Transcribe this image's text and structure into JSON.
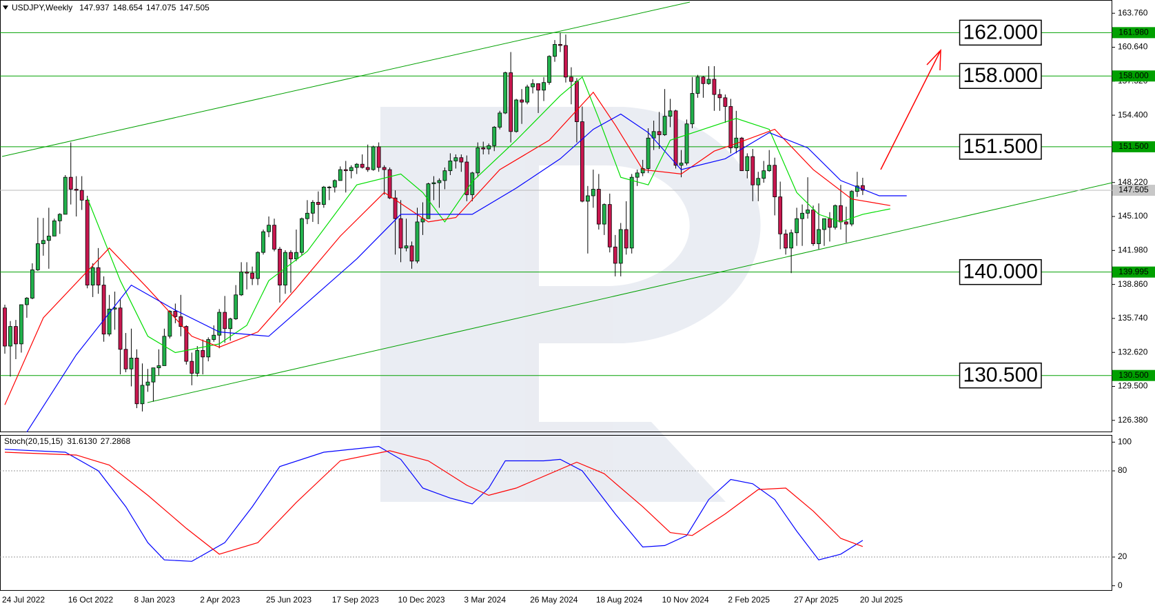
{
  "chart_data": [
    {
      "type": "candlestick",
      "title": "USDJPY,Weekly",
      "categories": [
        "24 Jul 2022",
        null,
        null,
        null,
        null,
        null,
        null,
        null,
        null,
        null,
        null,
        null,
        "16 Oct 2022",
        null,
        null,
        null,
        null,
        null,
        null,
        null,
        null,
        null,
        null,
        null,
        "8 Jan 2023",
        null,
        null,
        null,
        null,
        null,
        null,
        null,
        null,
        null,
        null,
        null,
        "2 Apr 2023",
        null,
        null,
        null,
        null,
        null,
        null,
        null,
        null,
        null,
        null,
        null,
        "25 Jun 2023",
        null,
        null,
        null,
        null,
        null,
        null,
        null,
        null,
        null,
        null,
        null,
        "17 Sep 2023",
        null,
        null,
        null,
        null,
        null,
        null,
        null,
        null,
        null,
        null,
        null,
        "10 Dec 2023",
        null,
        null,
        null,
        null,
        null,
        null,
        null,
        null,
        null,
        null,
        null,
        "3 Mar 2024",
        null,
        null,
        null,
        null,
        null,
        null,
        null,
        null,
        null,
        null,
        null,
        "26 May 2024",
        null,
        null,
        null,
        null,
        null,
        null,
        null,
        null,
        null,
        null,
        null,
        "18 Aug 2024",
        null,
        null,
        null,
        null,
        null,
        null,
        null,
        null,
        null,
        null,
        null,
        "10 Nov 2024",
        null,
        null,
        null,
        null,
        null,
        null,
        null,
        null,
        null,
        null,
        null,
        "2 Feb 2025",
        null,
        null,
        null,
        null,
        null,
        null,
        null,
        null,
        null,
        null,
        null,
        "27 Apr 2025",
        null,
        null,
        null,
        null,
        null,
        null,
        null,
        null,
        null,
        null,
        null,
        "20 Jul 2025"
      ],
      "open": [
        136.7,
        133.2,
        135.0,
        133.4,
        137.0,
        137.6,
        140.2,
        142.6,
        142.9,
        143.3,
        144.7,
        145.3,
        148.7,
        147.6,
        147.5,
        146.6,
        138.8,
        140.4,
        138.8,
        134.3,
        136.6,
        136.7,
        132.9,
        131.1,
        132.1,
        127.9,
        129.6,
        129.9,
        131.2,
        131.4,
        134.1,
        136.4,
        135.9,
        135.0,
        131.8,
        130.7,
        132.8,
        132.2,
        133.8,
        134.2,
        136.3,
        134.8,
        135.7,
        137.9,
        140.0,
        139.9,
        139.4,
        141.8,
        143.7,
        144.3,
        142.1,
        138.8,
        141.8,
        141.2,
        141.8,
        144.9,
        145.4,
        146.4,
        146.2,
        147.8,
        147.8,
        148.4,
        149.4,
        149.3,
        149.6,
        149.9,
        149.6,
        149.4,
        151.5,
        149.6,
        149.4,
        146.8,
        144.9,
        142.2,
        142.4,
        141.0,
        144.6,
        144.9,
        148.1,
        148.2,
        148.4,
        149.3,
        150.2,
        150.5,
        150.1,
        147.1,
        149.1,
        151.4,
        151.3,
        151.6,
        153.3,
        154.6,
        158.3,
        152.9,
        155.8,
        155.6,
        157.0,
        157.3,
        156.7,
        157.4,
        159.8,
        160.9,
        160.8,
        157.9,
        157.5,
        153.8,
        146.5,
        147.0,
        147.6,
        144.4,
        146.2,
        142.3,
        140.8,
        143.9,
        142.2,
        148.7,
        149.1,
        149.5,
        152.3,
        152.9,
        152.6,
        154.3,
        154.8,
        149.8,
        150.0,
        153.6,
        156.4,
        157.9,
        157.3,
        157.7,
        156.3,
        156.0,
        155.2,
        151.4,
        152.3,
        149.3,
        150.6,
        148.0,
        148.6,
        149.3,
        149.8,
        146.9,
        143.5,
        142.2,
        143.6,
        144.9,
        145.4,
        145.7,
        142.6,
        143.9,
        144.9,
        144.1,
        146.1,
        144.6,
        144.4,
        147.4,
        147.937
      ],
      "high": [
        137.0,
        135.5,
        135.6,
        137.0,
        137.7,
        140.8,
        144.99,
        144.96,
        145.9,
        144.9,
        145.4,
        148.9,
        151.9,
        148.8,
        148.8,
        147.0,
        140.8,
        142.2,
        139.6,
        137.9,
        138.2,
        137.5,
        134.4,
        134.8,
        132.9,
        131.6,
        131.1,
        131.2,
        132.9,
        134.8,
        136.5,
        137.1,
        137.9,
        135.1,
        132.6,
        133.2,
        133.8,
        134.0,
        135.1,
        136.6,
        137.8,
        135.8,
        138.8,
        140.9,
        140.9,
        140.5,
        141.9,
        143.9,
        145.1,
        144.9,
        142.3,
        142.0,
        142.0,
        143.9,
        145.0,
        146.6,
        146.6,
        147.4,
        147.9,
        147.9,
        148.5,
        149.7,
        150.2,
        149.8,
        150.0,
        150.8,
        151.7,
        151.6,
        151.9,
        149.8,
        149.6,
        147.5,
        146.6,
        144.9,
        142.8,
        145.9,
        146.4,
        148.2,
        148.8,
        148.6,
        149.6,
        150.9,
        150.8,
        150.8,
        150.7,
        149.2,
        151.9,
        151.97,
        151.8,
        153.4,
        154.8,
        158.4,
        160.2,
        155.9,
        156.8,
        157.2,
        157.7,
        157.3,
        157.9,
        159.9,
        161.3,
        161.95,
        161.8,
        158.8,
        157.8,
        155.2,
        147.9,
        149.4,
        149.0,
        146.3,
        147.2,
        143.4,
        144.5,
        146.5,
        149.0,
        149.4,
        150.3,
        153.2,
        153.9,
        154.7,
        156.8,
        155.9,
        154.9,
        151.2,
        154.0,
        157.9,
        158.1,
        158.0,
        158.9,
        158.9,
        156.8,
        156.3,
        155.9,
        154.8,
        152.4,
        150.9,
        151.3,
        149.2,
        150.2,
        151.2,
        150.5,
        148.3,
        143.9,
        143.9,
        145.9,
        146.2,
        148.7,
        146.1,
        146.3,
        144.9,
        145.5,
        146.2,
        148.0,
        146.0,
        147.5,
        149.2,
        148.654
      ],
      "low": [
        132.5,
        130.4,
        132.0,
        132.6,
        135.8,
        137.5,
        140.1,
        141.5,
        140.3,
        143.3,
        143.5,
        145.3,
        146.2,
        145.1,
        145.7,
        138.5,
        137.7,
        138.0,
        133.6,
        134.1,
        134.7,
        130.6,
        130.8,
        129.5,
        127.5,
        127.2,
        129.0,
        128.1,
        130.5,
        131.4,
        133.9,
        135.3,
        134.1,
        131.5,
        129.6,
        130.4,
        130.6,
        131.8,
        133.6,
        133.0,
        133.5,
        133.7,
        135.6,
        137.8,
        138.4,
        138.8,
        138.8,
        141.6,
        143.2,
        141.9,
        137.2,
        138.0,
        138.1,
        141.0,
        141.5,
        144.4,
        144.6,
        144.4,
        145.9,
        146.6,
        147.3,
        148.4,
        147.3,
        148.6,
        149.0,
        149.5,
        149.2,
        149.3,
        149.2,
        147.1,
        146.7,
        141.6,
        140.9,
        141.9,
        140.3,
        140.8,
        143.4,
        144.9,
        146.6,
        145.9,
        147.6,
        148.9,
        149.5,
        149.2,
        146.5,
        146.5,
        148.7,
        150.8,
        150.8,
        151.1,
        153.1,
        154.5,
        151.9,
        152.8,
        153.6,
        155.4,
        156.4,
        154.6,
        155.7,
        157.2,
        159.3,
        160.2,
        157.4,
        155.4,
        151.9,
        146.4,
        141.7,
        145.9,
        143.9,
        143.4,
        141.8,
        139.6,
        139.6,
        141.6,
        141.7,
        147.9,
        148.8,
        149.1,
        151.2,
        151.3,
        152.5,
        153.3,
        149.5,
        148.7,
        149.8,
        153.2,
        156.0,
        156.0,
        157.2,
        154.8,
        154.8,
        153.7,
        150.9,
        150.9,
        149.3,
        148.6,
        146.5,
        146.5,
        148.2,
        149.2,
        145.2,
        142.1,
        141.6,
        139.9,
        142.4,
        142.4,
        144.9,
        142.4,
        142.1,
        142.4,
        142.8,
        143.9,
        143.9,
        142.7,
        144.2,
        146.9,
        147.075
      ],
      "close": [
        133.2,
        135.0,
        133.4,
        137.0,
        137.6,
        140.2,
        142.6,
        142.9,
        143.3,
        144.7,
        145.3,
        148.7,
        147.6,
        147.5,
        146.6,
        138.8,
        140.4,
        138.8,
        134.3,
        136.6,
        136.7,
        132.9,
        131.1,
        132.1,
        127.9,
        129.6,
        129.9,
        131.2,
        131.4,
        134.1,
        136.4,
        135.9,
        135.0,
        131.8,
        130.7,
        132.8,
        132.2,
        133.8,
        134.2,
        136.3,
        134.8,
        135.7,
        137.9,
        140.0,
        139.9,
        139.4,
        141.8,
        143.7,
        144.3,
        142.1,
        138.8,
        141.8,
        141.2,
        141.8,
        144.9,
        145.4,
        146.4,
        146.2,
        147.8,
        147.8,
        148.4,
        149.4,
        149.3,
        149.6,
        149.9,
        149.6,
        149.4,
        151.5,
        149.6,
        149.4,
        146.8,
        144.9,
        142.2,
        142.4,
        141.0,
        144.6,
        144.9,
        148.1,
        148.2,
        148.4,
        149.3,
        150.2,
        150.5,
        150.1,
        147.1,
        149.1,
        151.4,
        151.3,
        151.6,
        153.3,
        154.6,
        158.3,
        152.9,
        155.8,
        155.6,
        157.0,
        157.3,
        156.7,
        157.4,
        159.8,
        160.9,
        160.8,
        157.9,
        157.5,
        153.8,
        146.5,
        147.0,
        147.6,
        144.4,
        146.2,
        142.3,
        140.8,
        143.9,
        142.2,
        148.7,
        149.1,
        149.5,
        152.3,
        152.9,
        152.6,
        154.3,
        154.8,
        149.8,
        150.0,
        153.6,
        156.4,
        157.9,
        157.3,
        157.7,
        156.3,
        156.0,
        155.2,
        151.4,
        152.3,
        149.3,
        150.6,
        148.0,
        148.6,
        149.3,
        149.8,
        146.9,
        143.5,
        142.2,
        143.6,
        144.9,
        145.4,
        145.7,
        142.6,
        143.9,
        144.9,
        144.1,
        146.1,
        144.6,
        144.4,
        147.4,
        147.9,
        147.505
      ],
      "up_color": "#22b14c",
      "down_color": "#c8174f",
      "wick_color": "#000000",
      "lines": [
        {
          "color": "#00dd00",
          "x": [
            15,
            21,
            26,
            31,
            39,
            44,
            48,
            55,
            64,
            72,
            76,
            80,
            85,
            93,
            101,
            105,
            108,
            112,
            117,
            121,
            127,
            133,
            139,
            144,
            148,
            152,
            156,
            161
          ],
          "values": [
            146.8,
            139.2,
            134.1,
            132.6,
            133.4,
            135.1,
            139.2,
            141.9,
            148.0,
            149.0,
            147.3,
            144.6,
            148.3,
            152.1,
            156.2,
            157.9,
            154.1,
            148.7,
            148.0,
            152.1,
            153.1,
            154.1,
            153.1,
            147.3,
            145.3,
            144.6,
            145.3,
            145.8
          ]
        },
        {
          "color": "#ff0000",
          "x": [
            0,
            7,
            19,
            26,
            34,
            39,
            46,
            53,
            61,
            69,
            77,
            82,
            90,
            99,
            107,
            111,
            116,
            123,
            129,
            133,
            140,
            147,
            154,
            161
          ],
          "values": [
            127.8,
            135.8,
            142.2,
            138.5,
            134.1,
            133.1,
            134.5,
            138.5,
            143.3,
            147.3,
            144.6,
            145.0,
            149.4,
            152.1,
            156.5,
            153.5,
            149.4,
            149.0,
            151.1,
            151.8,
            153.1,
            149.4,
            146.7,
            146.1
          ]
        },
        {
          "color": "#0000ff",
          "x": [
            4,
            13,
            23,
            31,
            39,
            48,
            55,
            64,
            72,
            80,
            85,
            93,
            101,
            107,
            112,
            117,
            123,
            131,
            139,
            146,
            152,
            159,
            164
          ],
          "values": [
            125.3,
            132.4,
            138.8,
            136.5,
            134.5,
            134.1,
            137.2,
            141.2,
            145.3,
            145.3,
            145.3,
            147.7,
            150.4,
            153.1,
            154.5,
            152.8,
            149.4,
            150.4,
            152.8,
            151.4,
            148.4,
            147.0,
            147.0
          ]
        }
      ],
      "levels": [
        {
          "value": 161.98,
          "label": "161.980",
          "annotation": "162.000"
        },
        {
          "value": 158,
          "label": "158.000",
          "annotation": "158.000"
        },
        {
          "value": 151.5,
          "label": "151.500",
          "annotation": "151.500"
        },
        {
          "value": 139.995,
          "label": "139.995",
          "annotation": "140.000"
        },
        {
          "value": 130.5,
          "label": "130.500",
          "annotation": "130.500"
        }
      ],
      "level_color": "#00a000",
      "ylim": [
        125.29,
        164.85
      ],
      "yticks": [
        {
          "value": 163.76,
          "label": "163.760"
        },
        {
          "value": 160.64,
          "label": "160.640"
        },
        {
          "value": 157.52,
          "label": "157.520"
        },
        {
          "value": 154.4,
          "label": "154.400"
        },
        {
          "value": 148.22,
          "label": "148.220"
        },
        {
          "value": 145.1,
          "label": "145.100"
        },
        {
          "value": 141.98,
          "label": "141.980"
        },
        {
          "value": 138.86,
          "label": "138.860"
        },
        {
          "value": 135.74,
          "label": "135.740"
        },
        {
          "value": 132.62,
          "label": "132.620"
        },
        {
          "value": 129.5,
          "label": "129.500"
        },
        {
          "value": 126.38,
          "label": "126.380"
        }
      ]
    },
    {
      "type": "line",
      "title": "Stoch(20,15,15)",
      "readout": [
        "31.6130",
        "27.2868"
      ],
      "series": [
        {
          "color": "#0000ff",
          "x": [
            0,
            11,
            17,
            22,
            26,
            29,
            34,
            40,
            45,
            50,
            58,
            68,
            72,
            76,
            81,
            85,
            88,
            91,
            98,
            101,
            105,
            111,
            116,
            120,
            124,
            128,
            132,
            136,
            140,
            144,
            148,
            152,
            156
          ],
          "values": [
            95,
            93,
            80,
            55,
            30,
            18,
            17,
            30,
            55,
            83,
            93,
            97,
            88,
            68,
            61,
            57,
            68,
            87,
            87,
            88,
            80,
            50,
            27,
            28,
            35,
            60,
            74,
            71,
            60,
            38,
            18,
            22,
            31.6
          ]
        },
        {
          "color": "#ff0000",
          "x": [
            0,
            13,
            19,
            26,
            33,
            39,
            46,
            53,
            61,
            70,
            77,
            84,
            88,
            93,
            104,
            109,
            116,
            121,
            125,
            131,
            137,
            142,
            147,
            152,
            156
          ],
          "values": [
            93,
            91,
            84,
            63,
            40,
            22,
            30,
            58,
            87,
            94,
            87,
            70,
            63,
            68,
            86,
            78,
            55,
            37,
            35,
            50,
            67,
            68,
            52,
            33,
            27.3
          ]
        }
      ],
      "levels": [
        80,
        20
      ],
      "ylim": [
        -3.5,
        104.5
      ],
      "yticks": [
        100,
        80,
        20,
        0
      ]
    }
  ]
}
